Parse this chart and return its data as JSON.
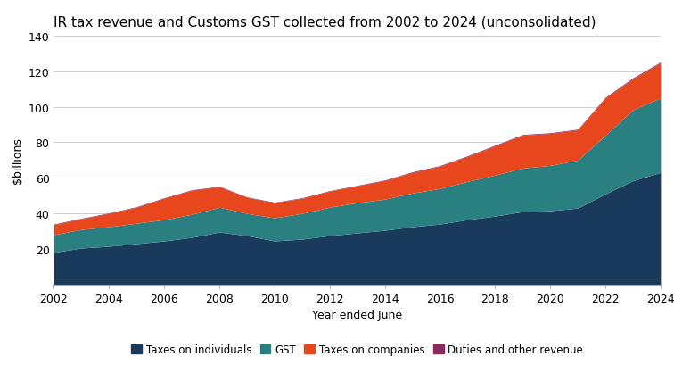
{
  "title": "IR tax revenue and Customs GST collected from 2002 to 2024 (unconsolidated)",
  "xlabel": "Year ended June",
  "ylabel": "$billions",
  "years": [
    2002,
    2003,
    2004,
    2005,
    2006,
    2007,
    2008,
    2009,
    2010,
    2011,
    2012,
    2013,
    2014,
    2015,
    2016,
    2017,
    2018,
    2019,
    2020,
    2021,
    2022,
    2023,
    2024
  ],
  "taxes_individuals": [
    18.1,
    20.5,
    21.5,
    23.0,
    24.5,
    26.5,
    29.5,
    27.5,
    24.5,
    25.5,
    27.5,
    29.0,
    30.5,
    32.5,
    34.0,
    36.5,
    38.5,
    41.0,
    41.5,
    43.0,
    51.0,
    58.4,
    63.0
  ],
  "gst": [
    9.9,
    10.5,
    11.0,
    11.5,
    12.0,
    13.0,
    14.0,
    12.5,
    13.0,
    14.5,
    16.0,
    17.0,
    17.5,
    19.0,
    20.0,
    21.5,
    23.0,
    24.5,
    25.5,
    27.0,
    33.0,
    39.9,
    42.0
  ],
  "taxes_companies": [
    5.7,
    6.0,
    7.5,
    9.0,
    12.0,
    13.5,
    11.5,
    9.0,
    8.5,
    8.5,
    9.0,
    9.5,
    10.5,
    11.5,
    12.5,
    14.0,
    16.5,
    18.5,
    18.0,
    17.0,
    21.0,
    17.5,
    19.7
  ],
  "duties_other": [
    0.3,
    0.3,
    0.3,
    0.3,
    0.3,
    0.3,
    0.3,
    0.3,
    0.3,
    0.3,
    0.3,
    0.3,
    0.3,
    0.4,
    0.4,
    0.4,
    0.4,
    0.4,
    0.4,
    0.4,
    0.4,
    0.5,
    0.5
  ],
  "color_individuals": "#1a3a5c",
  "color_gst": "#2a8080",
  "color_companies": "#e8471e",
  "color_duties": "#8b2a5e",
  "ylim": [
    0,
    140
  ],
  "yticks": [
    20,
    40,
    60,
    80,
    100,
    120,
    140
  ],
  "background_color": "#ffffff",
  "grid_color": "#d0d0d0",
  "title_fontsize": 11,
  "label_fontsize": 9,
  "tick_fontsize": 9
}
